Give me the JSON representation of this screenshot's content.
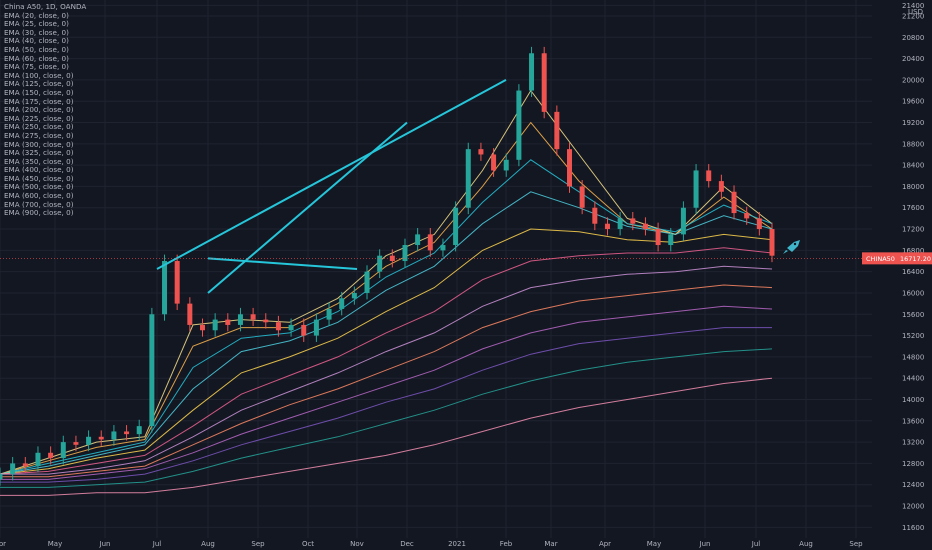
{
  "header": {
    "symbol_line": "China A50, 1D, OANDA",
    "currency": "USD"
  },
  "indicators": [
    "EMA (20, close, 0)",
    "EMA (25, close, 0)",
    "EMA (30, close, 0)",
    "EMA (40, close, 0)",
    "EMA (50, close, 0)",
    "EMA (60, close, 0)",
    "EMA (75, close, 0)",
    "EMA (100, close, 0)",
    "EMA (125, close, 0)",
    "EMA (150, close, 0)",
    "EMA (175, close, 0)",
    "EMA (200, close, 0)",
    "EMA (225, close, 0)",
    "EMA (250, close, 0)",
    "EMA (275, close, 0)",
    "EMA (300, close, 0)",
    "EMA (325, close, 0)",
    "EMA (350, close, 0)",
    "EMA (400, close, 0)",
    "EMA (450, close, 0)",
    "EMA (500, close, 0)",
    "EMA (600, close, 0)",
    "EMA (700, close, 0)",
    "EMA (900, close, 0)"
  ],
  "price_tag": {
    "label": "CHINA50",
    "value": "16717.20",
    "color": "#ef5350"
  },
  "icons": {
    "rocket": "rocket-icon"
  },
  "chart_data": {
    "type": "line",
    "title": "China A50, 1D, OANDA",
    "ylabel": "USD",
    "ylim": [
      11400,
      21500
    ],
    "y_ticks": [
      11600,
      12000,
      12400,
      12800,
      13200,
      13600,
      14000,
      14400,
      14800,
      15200,
      15600,
      16000,
      16400,
      16800,
      17200,
      17600,
      18000,
      18400,
      18800,
      19200,
      19600,
      20000,
      20400,
      20800,
      21200,
      21400
    ],
    "x_labels": [
      "Apr",
      "May",
      "Jun",
      "Jul",
      "Aug",
      "Sep",
      "Oct",
      "Nov",
      "Dec",
      "2021",
      "Feb",
      "Mar",
      "Apr",
      "May",
      "Jun",
      "Jul",
      "Aug",
      "Sep"
    ],
    "grid": true,
    "price_series": {
      "name": "China A50",
      "dates": [
        "Apr",
        "Apr",
        "Apr",
        "Apr",
        "May",
        "May",
        "May",
        "May",
        "Jun",
        "Jun",
        "Jun",
        "Jun",
        "Jul",
        "Jul",
        "Jul",
        "Jul",
        "Aug",
        "Aug",
        "Aug",
        "Aug",
        "Sep",
        "Sep",
        "Sep",
        "Sep",
        "Oct",
        "Oct",
        "Oct",
        "Oct",
        "Nov",
        "Nov",
        "Nov",
        "Nov",
        "Dec",
        "Dec",
        "Dec",
        "Dec",
        "Jan",
        "Jan",
        "Jan",
        "Jan",
        "Feb",
        "Feb",
        "Feb",
        "Feb",
        "Mar",
        "Mar",
        "Mar",
        "Mar",
        "Apr",
        "Apr",
        "Apr",
        "Apr",
        "May",
        "May",
        "May",
        "May",
        "Jun",
        "Jun",
        "Jun",
        "Jun",
        "Jul",
        "Jul"
      ],
      "close": [
        12600,
        12800,
        12750,
        13000,
        12900,
        13200,
        13150,
        13300,
        13250,
        13400,
        13350,
        13500,
        15600,
        16600,
        15800,
        15400,
        15300,
        15500,
        15400,
        15600,
        15500,
        15450,
        15300,
        15400,
        15200,
        15500,
        15700,
        15900,
        16000,
        16400,
        16700,
        16600,
        16900,
        17100,
        16800,
        16900,
        17600,
        18700,
        18600,
        18300,
        18500,
        19800,
        20500,
        19400,
        18700,
        18000,
        17600,
        17300,
        17200,
        17400,
        17300,
        17200,
        16900,
        17100,
        17600,
        18300,
        18100,
        17900,
        17500,
        17400,
        17200,
        16700
      ]
    },
    "ema_series": [
      {
        "name": "EMA (20, close, 0)",
        "color": "#f7e08a",
        "values": [
          12600,
          12900,
          13200,
          13300,
          15400,
          15500,
          15450,
          15900,
          16700,
          17100,
          18300,
          19800,
          18600,
          17400,
          17100,
          18000,
          17300
        ]
      },
      {
        "name": "EMA (50, close, 0)",
        "color": "#ffb74d",
        "values": [
          12600,
          12850,
          13100,
          13250,
          15000,
          15350,
          15350,
          15800,
          16500,
          16950,
          18000,
          19200,
          18100,
          17300,
          17100,
          17800,
          17200
        ]
      },
      {
        "name": "EMA (75, close, 0)",
        "color": "#26c6da",
        "values": [
          12600,
          12800,
          13000,
          13200,
          14600,
          15150,
          15250,
          15650,
          16300,
          16750,
          17700,
          18500,
          17900,
          17300,
          17150,
          17650,
          17300
        ]
      },
      {
        "name": "EMA (100, close, 0)",
        "color": "#4dd0e1",
        "values": [
          12600,
          12750,
          12950,
          13150,
          14200,
          14900,
          15100,
          15450,
          16050,
          16500,
          17300,
          17900,
          17600,
          17250,
          17100,
          17450,
          17200
        ]
      },
      {
        "name": "EMA (150, close, 0)",
        "color": "#ffd54f",
        "values": [
          12600,
          12700,
          12900,
          13050,
          13800,
          14500,
          14800,
          15150,
          15650,
          16100,
          16800,
          17200,
          17150,
          17000,
          16950,
          17100,
          17000
        ]
      },
      {
        "name": "EMA (200, close, 0)",
        "color": "#f06292",
        "values": [
          12600,
          12650,
          12800,
          12950,
          13500,
          14100,
          14450,
          14800,
          15250,
          15650,
          16250,
          16600,
          16700,
          16750,
          16750,
          16850,
          16750
        ]
      },
      {
        "name": "EMA (250, close, 0)",
        "color": "#ce93d8",
        "values": [
          12600,
          12600,
          12700,
          12850,
          13300,
          13800,
          14150,
          14500,
          14900,
          15250,
          15750,
          16100,
          16250,
          16350,
          16400,
          16500,
          16450
        ]
      },
      {
        "name": "EMA (300, close, 0)",
        "color": "#ff8a65",
        "values": [
          12550,
          12550,
          12650,
          12750,
          13150,
          13550,
          13900,
          14200,
          14550,
          14900,
          15350,
          15650,
          15850,
          15950,
          16050,
          16150,
          16100
        ]
      },
      {
        "name": "EMA (350, close, 0)",
        "color": "#ba68c8",
        "values": [
          12500,
          12500,
          12600,
          12700,
          13000,
          13350,
          13650,
          13950,
          14250,
          14550,
          14950,
          15250,
          15450,
          15550,
          15650,
          15750,
          15700
        ]
      },
      {
        "name": "EMA (450, close, 0)",
        "color": "#7e57c2",
        "values": [
          12450,
          12450,
          12500,
          12600,
          12850,
          13150,
          13400,
          13650,
          13950,
          14200,
          14550,
          14850,
          15050,
          15150,
          15250,
          15350,
          15350
        ]
      },
      {
        "name": "EMA (600, close, 0)",
        "color": "#26a69a",
        "values": [
          12350,
          12350,
          12400,
          12450,
          12650,
          12900,
          13100,
          13300,
          13550,
          13800,
          14100,
          14350,
          14550,
          14700,
          14800,
          14900,
          14950
        ]
      },
      {
        "name": "EMA (900, close, 0)",
        "color": "#f48fb1",
        "values": [
          12200,
          12200,
          12250,
          12250,
          12350,
          12500,
          12650,
          12800,
          12950,
          13150,
          13400,
          13650,
          13850,
          14000,
          14150,
          14300,
          14400
        ]
      }
    ],
    "trendlines": [
      {
        "name": "descending-trendline-1",
        "from": [
          "Feb",
          20000
        ],
        "to": [
          "Jul",
          16450
        ],
        "color": "#26c6da"
      },
      {
        "name": "descending-trendline-2",
        "from": [
          "Dec",
          19200
        ],
        "to": [
          "Aug",
          16000
        ],
        "color": "#26c6da"
      },
      {
        "name": "support-line",
        "from": [
          "Nov",
          16450
        ],
        "to": [
          "Aug",
          16650
        ],
        "color": "#26c6da"
      }
    ]
  }
}
